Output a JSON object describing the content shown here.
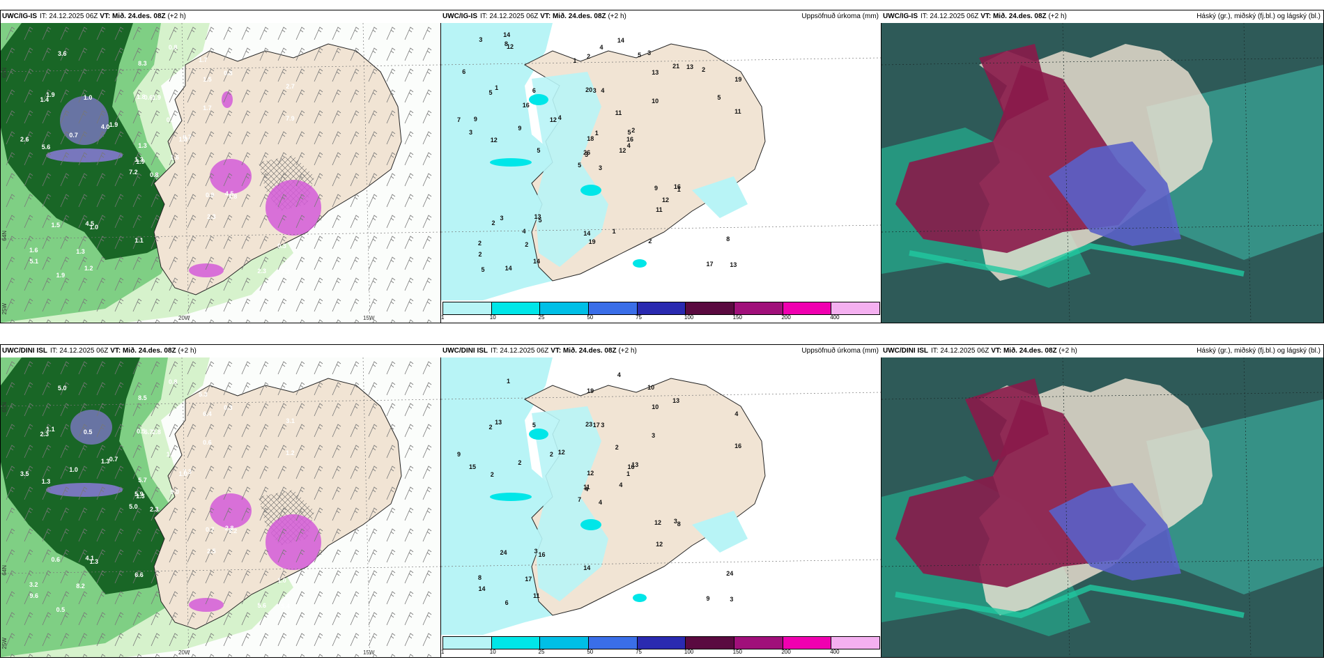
{
  "rows": [
    {
      "model": "UWC/IG-IS",
      "it_label": "IT:",
      "it_value": "24.12.2025 06Z",
      "vt_label": "VT:",
      "vt_value": "Mið. 24.des. 08Z",
      "lead": "(+2 h)"
    },
    {
      "model": "UWC/DINI ISL",
      "it_label": "IT:",
      "it_value": "24.12.2025 06Z",
      "vt_label": "VT:",
      "vt_value": "Mið. 24.des. 08Z",
      "lead": "(+2 h)"
    }
  ],
  "panel_titles": {
    "precip": "Uppsöfnuð úrkoma (mm)",
    "cloud": "Háský (gr.), miðský (fj.bl.) og lágský (bl.)"
  },
  "axis_labels": {
    "lat_65": "65N",
    "lat_64": "64N",
    "lat_63": "63N",
    "lon_25": "25W",
    "lon_20": "20W",
    "lon_15": "15W"
  },
  "colorbar": {
    "ticks": [
      "1",
      "10",
      "25",
      "50",
      "75",
      "100",
      "150",
      "200",
      "400"
    ],
    "colors": [
      "#b8f4f6",
      "#00e6e8",
      "#00bfe6",
      "#3a6ee8",
      "#2a2ab0",
      "#5a0a40",
      "#a0107a",
      "#f000b0",
      "#f4b0f0"
    ]
  },
  "colors": {
    "land": "#f1e4d4",
    "wind_green_light": "#d6f2cc",
    "wind_green_mid": "#7fcf84",
    "wind_green_dark": "#0e5a1c",
    "gust_violet": "#8a7ad8",
    "gust_magenta": "#d45cd8",
    "sea_dark": "#2e5a58",
    "cloud_high": "#8a1a4a",
    "cloud_mid": "#5a60c8",
    "cloud_low": "#20c8a0"
  },
  "wind_values_row1": [
    "0.8",
    "1.4",
    "1.9",
    "1.6",
    "1.3",
    "1.0",
    "1.7",
    "1.9",
    "1.5",
    "1.6",
    "3.6",
    "7.3",
    "5.6",
    "2.7",
    "7.2",
    "1.7",
    "1.9",
    "1.8",
    "0.8",
    "1.5",
    "1.9",
    "5.1",
    "1.3",
    "0.6",
    "0.7",
    "1.8",
    "1.9",
    "8.3",
    "2.6",
    "0.9",
    "7.9",
    "1.3",
    "1.1",
    "1.3",
    "1.0",
    "0.8",
    "4.5",
    "2.3",
    "0.3",
    "4.5",
    "0.8",
    "4.0",
    "0.7",
    "2.3",
    "1.2"
  ],
  "wind_values_row2": [
    "2.3",
    "2.3",
    "1.3",
    "3.2",
    "1.0",
    "1.3",
    "5.3",
    "2.8",
    "6.4",
    "9.0",
    "5.0",
    "5.4",
    "1.3",
    "3.1",
    "5.0",
    "0.6",
    "0.5",
    "0.5",
    "1.0",
    "0.6",
    "0.7",
    "9.6",
    "8.2",
    "6.7",
    "7.3",
    "3.2",
    "1.1",
    "8.5",
    "3.5",
    "0.7",
    "1.2",
    "5.9",
    "6.6",
    "5.7",
    "0.5",
    "0.3",
    "4.1",
    "5.6",
    "1.0",
    "2.8",
    "0.8",
    "1.3",
    "1.0",
    "2.5"
  ],
  "precip_values_row1": [
    "3",
    "5",
    "3",
    "2",
    "5",
    "5",
    "3",
    "4",
    "13",
    "12",
    "12",
    "13",
    "12",
    "19",
    "5",
    "10",
    "14",
    "20",
    "11",
    "3",
    "4",
    "2",
    "2",
    "3",
    "2",
    "1",
    "1",
    "2",
    "3",
    "9",
    "11",
    "26",
    "14",
    "18",
    "6",
    "21",
    "13",
    "17",
    "8",
    "16",
    "14",
    "12",
    "9",
    "11",
    "14",
    "7",
    "16",
    "5",
    "19",
    "4",
    "2",
    "5",
    "6",
    "12",
    "2",
    "4",
    "8",
    "3",
    "1",
    "2",
    "4",
    "5",
    "9",
    "16",
    "13",
    "14",
    "5",
    "1",
    "1"
  ],
  "precip_values_row2": [
    "4",
    "2",
    "4",
    "8",
    "16",
    "16",
    "10",
    "3",
    "10",
    "4",
    "1",
    "3",
    "2",
    "4",
    "7",
    "3",
    "6",
    "23",
    "2",
    "24",
    "12",
    "14",
    "17",
    "17",
    "13",
    "8",
    "13",
    "19",
    "15",
    "12",
    "16",
    "11",
    "14",
    "12",
    "5",
    "13",
    "3",
    "9",
    "24",
    "3",
    "4",
    "2",
    "2",
    "12",
    "11",
    "9",
    "1"
  ]
}
